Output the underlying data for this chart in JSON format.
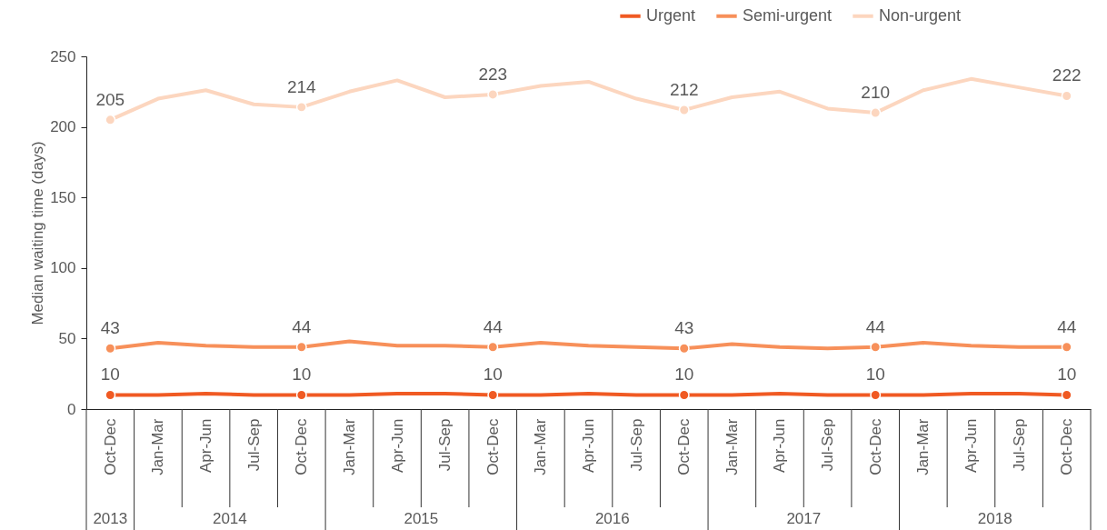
{
  "chart_data": {
    "type": "line",
    "ylabel": "Median waiting time (days)",
    "categories": [
      "Oct-Dec",
      "Jan-Mar",
      "Apr-Jun",
      "Jul-Sep",
      "Oct-Dec",
      "Jan-Mar",
      "Apr-Jun",
      "Jul-Sep",
      "Oct-Dec",
      "Jan-Mar",
      "Apr-Jun",
      "Jul-Sep",
      "Oct-Dec",
      "Jan-Mar",
      "Apr-Jun",
      "Jul-Sep",
      "Oct-Dec",
      "Jan-Mar",
      "Apr-Jun",
      "Jul-Sep",
      "Oct-Dec"
    ],
    "annotations": [
      "2013",
      "2014",
      "2015",
      "2016",
      "2017",
      "2018"
    ],
    "ylim": [
      0,
      250
    ],
    "yticks": [
      0,
      50,
      100,
      150,
      200,
      250
    ],
    "grid": false,
    "legend": "top right",
    "series": [
      {
        "name": "Urgent",
        "color": "#f05a23",
        "values": [
          10,
          10,
          11,
          10,
          10,
          10,
          11,
          11,
          10,
          10,
          11,
          10,
          10,
          10,
          11,
          10,
          10,
          10,
          11,
          11,
          10
        ],
        "value_labels": [
          "10",
          null,
          null,
          null,
          "10",
          null,
          null,
          null,
          "10",
          null,
          null,
          null,
          "10",
          null,
          null,
          null,
          "10",
          null,
          null,
          null,
          "10"
        ]
      },
      {
        "name": "Semi-urgent",
        "color": "#f7905a",
        "values": [
          43,
          47,
          45,
          44,
          44,
          48,
          45,
          45,
          44,
          47,
          45,
          44,
          43,
          46,
          44,
          43,
          44,
          47,
          45,
          44,
          44
        ],
        "value_labels": [
          "43",
          null,
          null,
          null,
          "44",
          null,
          null,
          null,
          "44",
          null,
          null,
          null,
          "43",
          null,
          null,
          null,
          "44",
          null,
          null,
          null,
          "44"
        ]
      },
      {
        "name": "Non-urgent",
        "color": "#fcd6bf",
        "values": [
          205,
          220,
          226,
          216,
          214,
          225,
          233,
          221,
          223,
          229,
          232,
          220,
          212,
          221,
          225,
          213,
          210,
          226,
          234,
          228,
          222
        ],
        "value_labels": [
          "205",
          null,
          null,
          null,
          "214",
          null,
          null,
          null,
          "223",
          null,
          null,
          null,
          "212",
          null,
          null,
          null,
          "210",
          null,
          null,
          null,
          "222"
        ]
      }
    ]
  }
}
